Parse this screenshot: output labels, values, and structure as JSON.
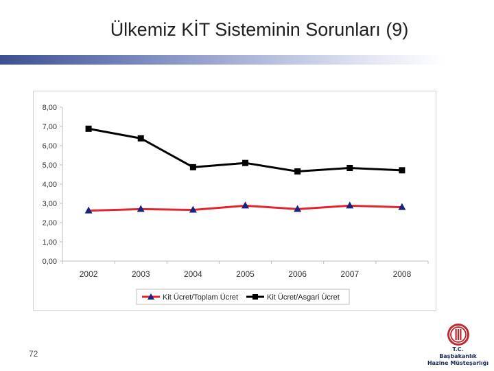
{
  "slide": {
    "title": "Ülkemiz KİT Sisteminin Sorunları (9)",
    "page_number": "72"
  },
  "logo": {
    "line1": "T.C.",
    "line2": "Başbakanlık",
    "line3": "Hazine Müsteşarlığı",
    "seal_color": "#c0262c"
  },
  "chart_data": {
    "type": "line",
    "x": [
      "2002",
      "2003",
      "2004",
      "2005",
      "2006",
      "2007",
      "2008"
    ],
    "series": [
      {
        "name": "Kit Ücret/Toplam Ücret",
        "values": [
          2.62,
          2.7,
          2.66,
          2.88,
          2.7,
          2.88,
          2.8
        ],
        "color": "#e4252d",
        "marker": "triangle",
        "marker_color": "#1a237e"
      },
      {
        "name": "Kit Ücret/Asgari Ücret",
        "values": [
          6.88,
          6.38,
          4.88,
          5.1,
          4.66,
          4.84,
          4.72
        ],
        "color": "#000000",
        "marker": "square",
        "marker_color": "#000000"
      }
    ],
    "y_ticks": [
      "0,00",
      "1,00",
      "2,00",
      "3,00",
      "4,00",
      "5,00",
      "6,00",
      "7,00",
      "8,00"
    ],
    "ylim": [
      0,
      8
    ],
    "grid": false,
    "legend_position": "bottom"
  }
}
